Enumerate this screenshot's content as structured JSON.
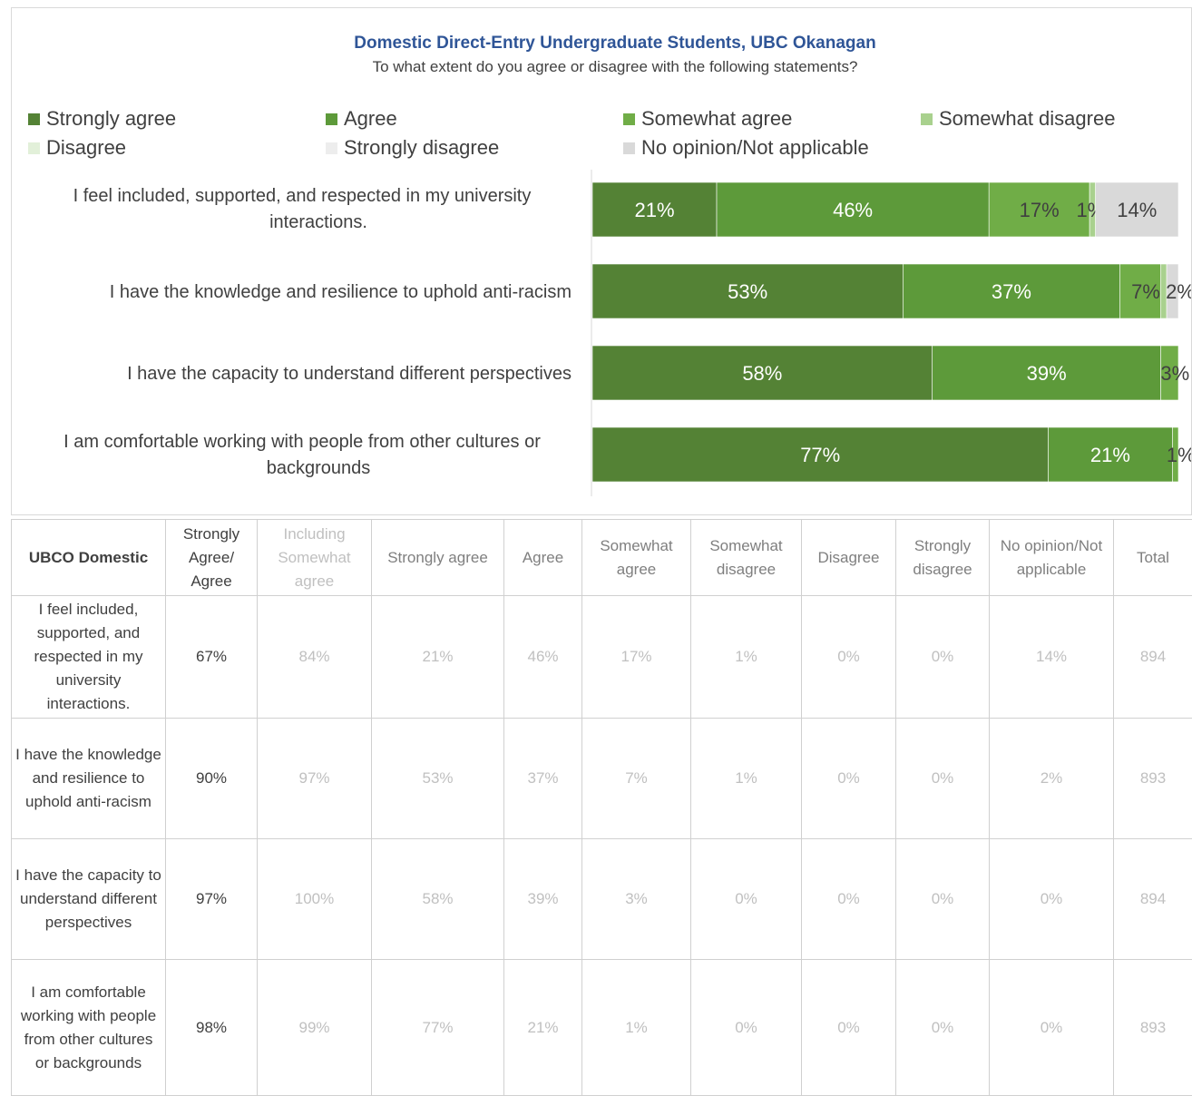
{
  "chart_data": {
    "type": "bar",
    "orientation": "horizontal-stacked-100",
    "title": "Domestic Direct-Entry Undergraduate Students, UBC Okanagan",
    "subtitle": "To what extent do you agree or disagree with the following statements?",
    "legend_position": "top",
    "categories": [
      "I feel included, supported, and respected in my university interactions.",
      "I have the knowledge and resilience to uphold anti-racism",
      "I have the capacity to understand different perspectives",
      "I am comfortable working with people from other cultures or backgrounds"
    ],
    "series": [
      {
        "name": "Strongly agree",
        "color": "#548235",
        "values": [
          21,
          53,
          58,
          77
        ]
      },
      {
        "name": "Agree",
        "color": "#5d9a3a",
        "values": [
          46,
          37,
          39,
          21
        ]
      },
      {
        "name": "Somewhat agree",
        "color": "#70ad47",
        "values": [
          17,
          7,
          3,
          1
        ]
      },
      {
        "name": "Somewhat disagree",
        "color": "#a9d18e",
        "values": [
          1,
          1,
          0,
          0
        ]
      },
      {
        "name": "Disagree",
        "color": "#e2f0d9",
        "values": [
          0,
          0,
          0,
          0
        ]
      },
      {
        "name": "Strongly disagree",
        "color": "#ededed",
        "values": [
          0,
          0,
          0,
          0
        ]
      },
      {
        "name": "No opinion/Not applicable",
        "color": "#d9d9d9",
        "values": [
          14,
          2,
          0,
          0
        ]
      }
    ],
    "data_labels": [
      [
        "21%",
        "46%",
        "17%",
        "1%",
        "",
        "",
        "14%"
      ],
      [
        "53%",
        "37%",
        "7%",
        "",
        "",
        "",
        "2%"
      ],
      [
        "58%",
        "39%",
        "3%",
        "",
        "",
        "",
        ""
      ],
      [
        "77%",
        "21%",
        "1%",
        "",
        "",
        "",
        ""
      ]
    ],
    "xlim": [
      0,
      100
    ],
    "grid": false
  },
  "table": {
    "columns": [
      "UBCO Domestic",
      "Strongly Agree/ Agree",
      "Including Somewhat agree",
      "Strongly agree",
      "Agree",
      "Somewhat agree",
      "Somewhat disagree",
      "Disagree",
      "Strongly disagree",
      "No opinion/Not applicable",
      "Total"
    ],
    "rows": [
      [
        "I feel included, supported, and respected in my university interactions.",
        "67%",
        "84%",
        "21%",
        "46%",
        "17%",
        "1%",
        "0%",
        "0%",
        "14%",
        "894"
      ],
      [
        "I have the knowledge and resilience to uphold anti-racism",
        "90%",
        "97%",
        "53%",
        "37%",
        "7%",
        "1%",
        "0%",
        "0%",
        "2%",
        "893"
      ],
      [
        "I have the capacity to understand different perspectives",
        "97%",
        "100%",
        "58%",
        "39%",
        "3%",
        "0%",
        "0%",
        "0%",
        "0%",
        "894"
      ],
      [
        "I am comfortable working with people from other cultures or backgrounds",
        "98%",
        "99%",
        "77%",
        "21%",
        "1%",
        "0%",
        "0%",
        "0%",
        "0%",
        "893"
      ]
    ]
  }
}
